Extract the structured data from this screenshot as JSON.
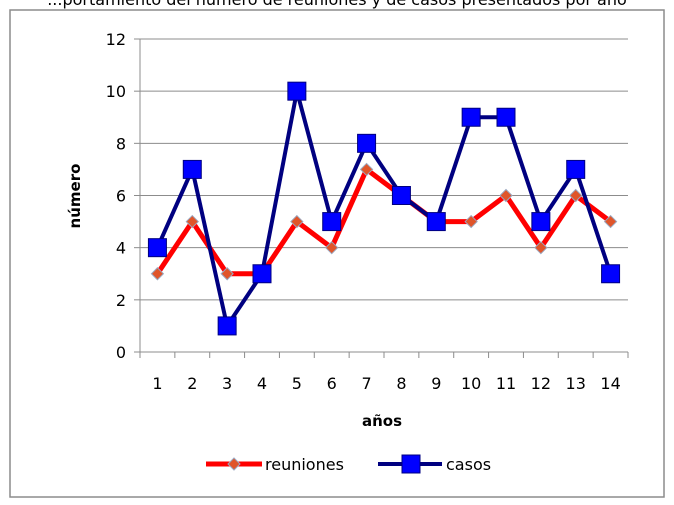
{
  "chart_data": {
    "type": "line",
    "title": "",
    "top_caption": "...portamiento del número de reuniones y de casos presentados por año",
    "xlabel": "años",
    "ylabel": "número",
    "categories": [
      "1",
      "2",
      "3",
      "4",
      "5",
      "6",
      "7",
      "8",
      "9",
      "10",
      "11",
      "12",
      "13",
      "14"
    ],
    "ylim": [
      0,
      12
    ],
    "yticks": [
      "0",
      "2",
      "4",
      "6",
      "8",
      "10",
      "12"
    ],
    "grid": true,
    "legend_position": "bottom",
    "series": [
      {
        "name": "reuniones",
        "values": [
          3,
          5,
          3,
          3,
          5,
          4,
          7,
          6,
          5,
          5,
          6,
          4,
          6,
          5
        ],
        "color": "#ff0000",
        "marker": "diamond",
        "marker_color": "#e0552a"
      },
      {
        "name": "casos",
        "values": [
          4,
          7,
          1,
          3,
          10,
          5,
          8,
          6,
          5,
          9,
          9,
          5,
          7,
          3
        ],
        "color": "#000080",
        "marker": "square",
        "marker_color": "#0000ff"
      }
    ]
  }
}
